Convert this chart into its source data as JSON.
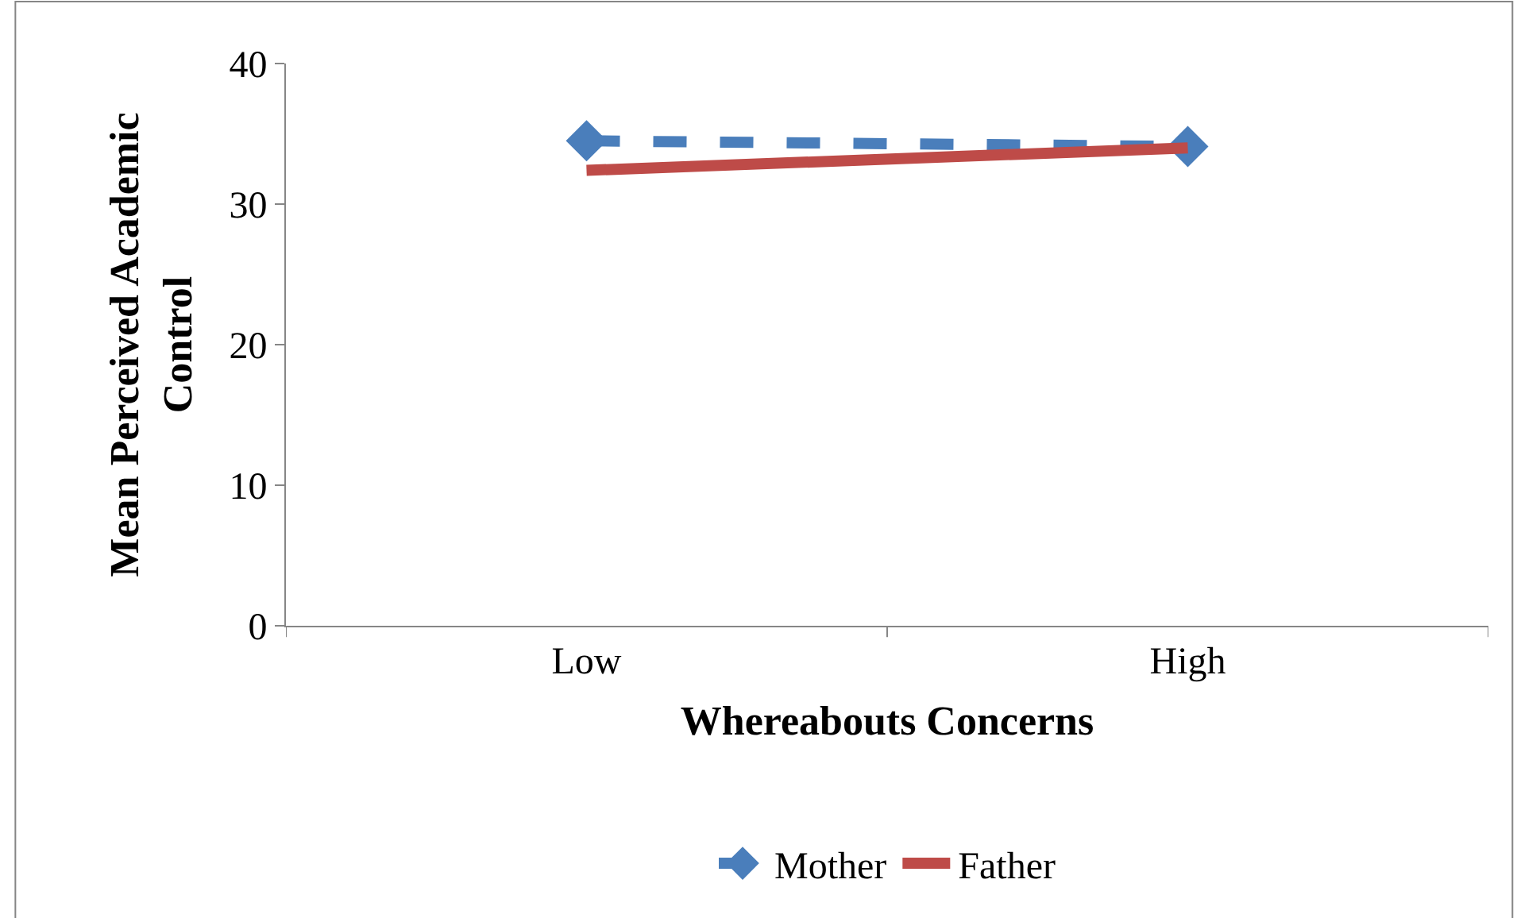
{
  "chart_data": {
    "type": "line",
    "xlabel": "Whereabouts Concerns",
    "ylabel": "Mean Perceived Academic Control",
    "categories": [
      "Low",
      "High"
    ],
    "series": [
      {
        "name": "Mother",
        "color": "#4a7ebb",
        "values": [
          34.5,
          34.1
        ],
        "line_style": "dashed",
        "marker": "diamond"
      },
      {
        "name": "Father",
        "color": "#be4b48",
        "values": [
          32.4,
          34.0
        ],
        "line_style": "solid",
        "marker": "none"
      }
    ],
    "ylim": [
      0,
      40
    ],
    "yticks": [
      0,
      10,
      20,
      30,
      40
    ],
    "legend": "bottom"
  }
}
